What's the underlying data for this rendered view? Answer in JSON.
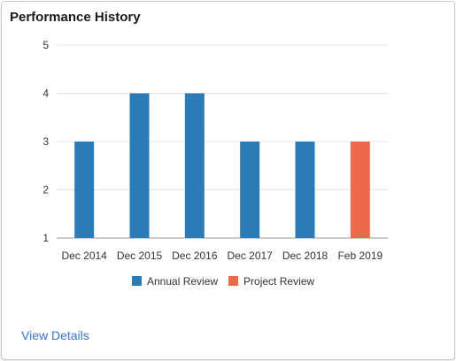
{
  "card": {
    "title": "Performance History",
    "link_label": "View Details"
  },
  "chart_data": {
    "type": "bar",
    "categories": [
      "Dec 2014",
      "Dec 2015",
      "Dec 2016",
      "Dec 2017",
      "Dec 2018",
      "Feb 2019"
    ],
    "series": [
      {
        "name": "Annual Review",
        "color": "#2b7bb9",
        "values": [
          3,
          4,
          4,
          3,
          3,
          null
        ]
      },
      {
        "name": "Project Review",
        "color": "#ec6a4c",
        "values": [
          null,
          null,
          null,
          null,
          null,
          3
        ]
      }
    ],
    "yticks": [
      1,
      2,
      3,
      4,
      5
    ],
    "ylim": [
      1,
      5
    ],
    "grid": true,
    "legend_position": "bottom"
  }
}
